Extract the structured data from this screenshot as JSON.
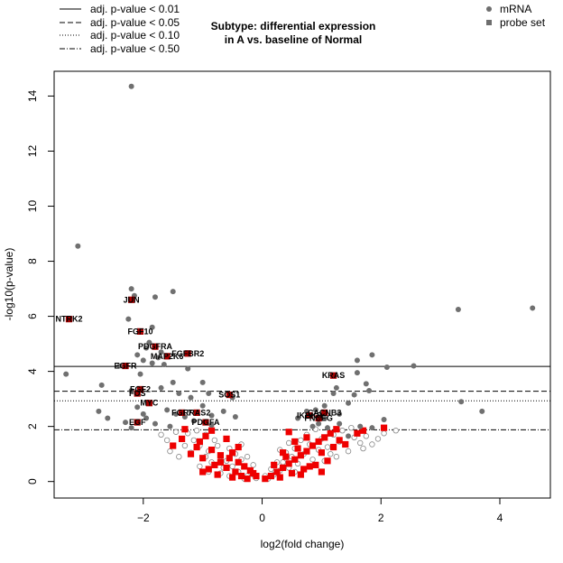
{
  "chart_data": {
    "type": "scatter",
    "title_line1": "Subtype: differential expression",
    "title_line2": "in A vs. baseline of Normal",
    "xlabel": "log2(fold change)",
    "ylabel": "-log10(p-value)",
    "xlim": [
      -3.5,
      4.85
    ],
    "ylim": [
      -0.6,
      14.9
    ],
    "xticks": [
      -2,
      0,
      2,
      4
    ],
    "yticks": [
      0,
      2,
      4,
      6,
      8,
      10,
      12,
      14
    ],
    "thresholds": [
      {
        "label": "adj. p-value < 0.01",
        "y": 4.18,
        "style": "solid"
      },
      {
        "label": "adj. p-value < 0.05",
        "y": 3.28,
        "style": "dashed"
      },
      {
        "label": "adj. p-value < 0.10",
        "y": 2.93,
        "style": "dotted"
      },
      {
        "label": "adj. p-value < 0.50",
        "y": 1.88,
        "style": "dotdash"
      }
    ],
    "legend_right": [
      {
        "label": "mRNA",
        "marker": "circle",
        "color": "#6e6e6e"
      },
      {
        "label": "probe set",
        "marker": "square",
        "color": "#6e6e6e"
      }
    ],
    "colors": {
      "mrna_sig": "#707070",
      "mrna_open": "#888888",
      "probe": "#ee0000",
      "probe_sig": "#aa0000"
    },
    "mrna_significant": [
      [
        -2.2,
        14.35
      ],
      [
        -3.1,
        8.55
      ],
      [
        -3.3,
        3.9
      ],
      [
        -2.7,
        3.5
      ],
      [
        -2.75,
        2.55
      ],
      [
        -2.2,
        7.0
      ],
      [
        -2.15,
        6.75
      ],
      [
        -1.8,
        6.7
      ],
      [
        -1.5,
        6.9
      ],
      [
        -2.25,
        5.9
      ],
      [
        -1.85,
        5.6
      ],
      [
        -1.9,
        5.05
      ],
      [
        -1.95,
        4.85
      ],
      [
        -1.7,
        4.7
      ],
      [
        -2.1,
        4.6
      ],
      [
        -1.75,
        4.5
      ],
      [
        -2.0,
        4.4
      ],
      [
        -1.85,
        4.3
      ],
      [
        -1.65,
        4.25
      ],
      [
        -1.25,
        4.1
      ],
      [
        -2.4,
        4.2
      ],
      [
        -2.05,
        3.9
      ],
      [
        -1.5,
        3.6
      ],
      [
        -1.7,
        3.4
      ],
      [
        -2.2,
        3.3
      ],
      [
        -1.4,
        3.2
      ],
      [
        -1.2,
        3.05
      ],
      [
        -1.0,
        3.6
      ],
      [
        -1.9,
        2.85
      ],
      [
        -2.1,
        2.7
      ],
      [
        -1.6,
        2.6
      ],
      [
        -1.45,
        2.45
      ],
      [
        -1.3,
        2.35
      ],
      [
        -1.15,
        2.2
      ],
      [
        -1.95,
        2.3
      ],
      [
        -2.3,
        2.15
      ],
      [
        -1.55,
        2.0
      ],
      [
        -1.8,
        2.1
      ],
      [
        -1.0,
        2.75
      ],
      [
        -0.85,
        2.4
      ],
      [
        -0.65,
        2.55
      ],
      [
        -0.45,
        2.35
      ],
      [
        -0.9,
        3.2
      ],
      [
        -0.5,
        3.05
      ],
      [
        -0.85,
        2.05
      ],
      [
        -2.6,
        2.3
      ],
      [
        -2.0,
        2.45
      ],
      [
        -2.2,
        1.95
      ],
      [
        4.55,
        6.3
      ],
      [
        3.3,
        6.25
      ],
      [
        3.7,
        2.55
      ],
      [
        3.35,
        2.9
      ],
      [
        2.55,
        4.2
      ],
      [
        2.1,
        4.15
      ],
      [
        1.85,
        4.6
      ],
      [
        1.6,
        4.4
      ],
      [
        1.6,
        3.95
      ],
      [
        1.75,
        3.55
      ],
      [
        1.8,
        3.3
      ],
      [
        1.25,
        3.4
      ],
      [
        1.2,
        3.2
      ],
      [
        1.55,
        3.15
      ],
      [
        1.45,
        2.85
      ],
      [
        1.05,
        2.75
      ],
      [
        0.9,
        2.6
      ],
      [
        1.3,
        2.45
      ],
      [
        1.05,
        2.3
      ],
      [
        0.75,
        2.55
      ],
      [
        0.6,
        2.3
      ],
      [
        0.95,
        2.1
      ],
      [
        1.3,
        2.1
      ],
      [
        1.65,
        2.0
      ],
      [
        1.85,
        1.95
      ],
      [
        2.05,
        2.25
      ],
      [
        1.45,
        1.65
      ],
      [
        1.1,
        1.95
      ],
      [
        0.85,
        2.0
      ]
    ],
    "probe_significant": [
      {
        "label": "NTRK2",
        "x": -3.25,
        "y": 5.9
      },
      {
        "label": "JUN",
        "x": -2.2,
        "y": 6.6
      },
      {
        "label": "FGF10",
        "x": -2.05,
        "y": 5.45
      },
      {
        "label": "PDGFRA",
        "x": -1.8,
        "y": 4.9
      },
      {
        "label": "FGFBR2",
        "x": -1.25,
        "y": 4.65
      },
      {
        "label": "MAP2K6",
        "x": -1.6,
        "y": 4.55
      },
      {
        "label": "EGFR",
        "x": -2.3,
        "y": 4.2
      },
      {
        "label": "FGF2",
        "x": -2.05,
        "y": 3.35
      },
      {
        "label": "FOS",
        "x": -2.1,
        "y": 3.2
      },
      {
        "label": "MYC",
        "x": -1.9,
        "y": 2.85
      },
      {
        "label": "EGF",
        "x": -2.1,
        "y": 2.15
      },
      {
        "label": "FGF7",
        "x": -1.35,
        "y": 2.5
      },
      {
        "label": "RRAS2",
        "x": -1.1,
        "y": 2.5
      },
      {
        "label": "PDGFA",
        "x": -0.95,
        "y": 2.15
      },
      {
        "label": "SOS1",
        "x": -0.55,
        "y": 3.15
      },
      {
        "label": "KRAS",
        "x": 1.2,
        "y": 3.85
      },
      {
        "label": "CACNB3",
        "x": 1.05,
        "y": 2.5
      },
      {
        "label": "IKBKB",
        "x": 0.8,
        "y": 2.4
      },
      {
        "label": "FNCEG",
        "x": 0.95,
        "y": 2.3
      }
    ],
    "mrna_nonsignificant": [
      [
        -1.45,
        1.8
      ],
      [
        -1.25,
        1.75
      ],
      [
        -1.1,
        1.85
      ],
      [
        -1.35,
        1.55
      ],
      [
        -1.15,
        1.5
      ],
      [
        -0.95,
        1.7
      ],
      [
        -0.8,
        1.5
      ],
      [
        -1.3,
        1.3
      ],
      [
        -1.05,
        1.3
      ],
      [
        -0.9,
        1.1
      ],
      [
        -0.75,
        1.3
      ],
      [
        -0.6,
        1.55
      ],
      [
        -0.55,
        1.2
      ],
      [
        -1.2,
        1.05
      ],
      [
        -0.95,
        0.9
      ],
      [
        -0.7,
        0.9
      ],
      [
        -0.45,
        1.0
      ],
      [
        -0.85,
        0.7
      ],
      [
        -0.6,
        0.75
      ],
      [
        -0.35,
        0.8
      ],
      [
        -0.5,
        0.55
      ],
      [
        -0.3,
        0.55
      ],
      [
        -0.2,
        0.4
      ],
      [
        -0.65,
        0.5
      ],
      [
        -0.4,
        0.35
      ],
      [
        -0.15,
        0.25
      ],
      [
        -0.25,
        0.2
      ],
      [
        -0.1,
        0.12
      ],
      [
        -1.05,
        0.55
      ],
      [
        -1.4,
        0.9
      ],
      [
        -1.55,
        1.1
      ],
      [
        -0.9,
        0.35
      ],
      [
        -0.7,
        0.3
      ],
      [
        -0.55,
        0.2
      ],
      [
        -0.3,
        0.1
      ],
      [
        -1.6,
        1.5
      ],
      [
        -1.7,
        1.7
      ],
      [
        -0.35,
        1.35
      ],
      [
        -0.25,
        0.9
      ],
      [
        -0.15,
        0.6
      ],
      [
        0.1,
        0.1
      ],
      [
        0.2,
        0.25
      ],
      [
        0.3,
        0.4
      ],
      [
        0.35,
        0.7
      ],
      [
        0.45,
        0.5
      ],
      [
        0.5,
        0.9
      ],
      [
        0.55,
        1.2
      ],
      [
        0.6,
        0.65
      ],
      [
        0.7,
        1.0
      ],
      [
        0.8,
        1.35
      ],
      [
        0.85,
        0.8
      ],
      [
        0.95,
        1.15
      ],
      [
        1.0,
        1.55
      ],
      [
        1.1,
        1.25
      ],
      [
        1.2,
        1.7
      ],
      [
        1.3,
        1.45
      ],
      [
        1.35,
        1.85
      ],
      [
        1.45,
        1.1
      ],
      [
        1.55,
        1.6
      ],
      [
        1.65,
        1.4
      ],
      [
        1.75,
        1.65
      ],
      [
        1.85,
        1.35
      ],
      [
        1.95,
        1.55
      ],
      [
        2.05,
        1.75
      ],
      [
        2.25,
        1.85
      ],
      [
        0.65,
        1.5
      ],
      [
        0.75,
        1.7
      ],
      [
        0.9,
        1.9
      ],
      [
        1.15,
        1.0
      ],
      [
        1.25,
        0.9
      ],
      [
        0.4,
        1.05
      ],
      [
        0.55,
        0.35
      ],
      [
        0.25,
        0.7
      ],
      [
        0.15,
        0.45
      ],
      [
        0.05,
        0.2
      ],
      [
        1.5,
        1.95
      ],
      [
        1.7,
        1.2
      ],
      [
        0.45,
        1.4
      ],
      [
        0.3,
        1.15
      ],
      [
        1.05,
        0.75
      ]
    ],
    "probe_nonsignificant": [
      [
        -1.35,
        1.55
      ],
      [
        -1.1,
        1.25
      ],
      [
        -0.85,
        1.15
      ],
      [
        -0.7,
        0.95
      ],
      [
        -0.55,
        0.85
      ],
      [
        -0.4,
        0.7
      ],
      [
        -0.3,
        0.55
      ],
      [
        -0.2,
        0.4
      ],
      [
        -0.1,
        0.2
      ],
      [
        -1.2,
        1.0
      ],
      [
        -1.0,
        0.85
      ],
      [
        -0.8,
        0.6
      ],
      [
        -0.6,
        0.5
      ],
      [
        -0.45,
        0.35
      ],
      [
        -0.9,
        0.45
      ],
      [
        -1.5,
        1.3
      ],
      [
        -1.3,
        1.9
      ],
      [
        -0.6,
        1.55
      ],
      [
        -1.05,
        1.45
      ],
      [
        -0.75,
        0.25
      ],
      [
        -0.35,
        0.2
      ],
      [
        -0.5,
        0.15
      ],
      [
        -1.0,
        0.35
      ],
      [
        -0.25,
        0.1
      ],
      [
        -0.15,
        0.3
      ],
      [
        -0.7,
        0.7
      ],
      [
        -0.95,
        1.65
      ],
      [
        -0.5,
        1.05
      ],
      [
        -0.85,
        1.85
      ],
      [
        -0.4,
        1.25
      ],
      [
        0.05,
        0.1
      ],
      [
        0.15,
        0.2
      ],
      [
        0.25,
        0.35
      ],
      [
        0.35,
        0.5
      ],
      [
        0.45,
        0.65
      ],
      [
        0.55,
        0.8
      ],
      [
        0.65,
        0.95
      ],
      [
        0.75,
        1.1
      ],
      [
        0.85,
        1.3
      ],
      [
        0.95,
        1.45
      ],
      [
        1.05,
        1.6
      ],
      [
        1.15,
        1.75
      ],
      [
        1.25,
        1.9
      ],
      [
        0.3,
        0.15
      ],
      [
        0.5,
        0.3
      ],
      [
        0.7,
        0.45
      ],
      [
        0.9,
        0.6
      ],
      [
        1.1,
        0.75
      ],
      [
        0.4,
        0.9
      ],
      [
        0.6,
        1.2
      ],
      [
        0.8,
        0.55
      ],
      [
        1.0,
        1.05
      ],
      [
        1.2,
        1.25
      ],
      [
        1.3,
        1.5
      ],
      [
        1.4,
        1.35
      ],
      [
        1.6,
        1.75
      ],
      [
        0.2,
        0.6
      ],
      [
        0.35,
        1.05
      ],
      [
        0.55,
        1.45
      ],
      [
        0.75,
        1.6
      ],
      [
        1.7,
        1.85
      ],
      [
        2.05,
        1.95
      ],
      [
        1.0,
        0.35
      ],
      [
        0.65,
        0.25
      ],
      [
        0.45,
        1.8
      ]
    ]
  }
}
